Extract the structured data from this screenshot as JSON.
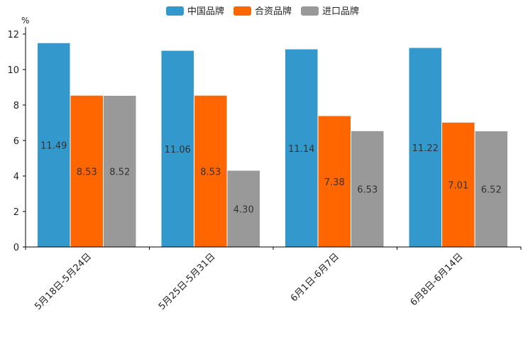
{
  "chart_data": {
    "type": "bar",
    "title": "",
    "xlabel": "",
    "ylabel": "%",
    "ylim": [
      0,
      12
    ],
    "yticks": [
      0,
      2,
      4,
      6,
      8,
      10,
      12
    ],
    "grid": false,
    "legend_position": "top-center",
    "categories": [
      "5月18日-5月24日",
      "5月25日-5月31日",
      "6月1日-6月7日",
      "6月8日-6月14日"
    ],
    "series": [
      {
        "name": "中国品牌",
        "color": "#3399cc",
        "values": [
          11.49,
          11.06,
          11.14,
          11.22
        ],
        "labels": [
          "11.49",
          "11.06",
          "11.14",
          "11.22"
        ]
      },
      {
        "name": "合资品牌",
        "color": "#ff6600",
        "values": [
          8.53,
          8.53,
          7.38,
          7.01
        ],
        "labels": [
          "8.53",
          "8.53",
          "7.38",
          "7.01"
        ]
      },
      {
        "name": "进口品牌",
        "color": "#999999",
        "values": [
          8.52,
          4.3,
          6.53,
          6.52
        ],
        "labels": [
          "8.52",
          "4.30",
          "6.53",
          "6.52"
        ]
      }
    ]
  }
}
